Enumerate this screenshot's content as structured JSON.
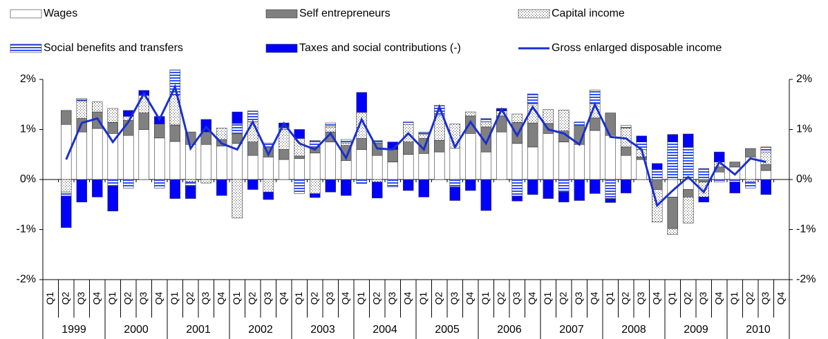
{
  "chart_data": {
    "type": "stacked-bar-line",
    "categories": [
      "Q1",
      "Q2",
      "Q3",
      "Q4",
      "Q1",
      "Q2",
      "Q3",
      "Q4",
      "Q1",
      "Q2",
      "Q3",
      "Q4",
      "Q1",
      "Q2",
      "Q3",
      "Q4",
      "Q1",
      "Q2",
      "Q3",
      "Q4",
      "Q1",
      "Q2",
      "Q3",
      "Q4",
      "Q1",
      "Q2",
      "Q3",
      "Q4",
      "Q1",
      "Q2",
      "Q3",
      "Q4",
      "Q1",
      "Q2",
      "Q3",
      "Q4",
      "Q1",
      "Q2",
      "Q3",
      "Q4",
      "Q1",
      "Q2",
      "Q3",
      "Q4",
      "Q1",
      "Q2",
      "Q3",
      "Q4"
    ],
    "years": [
      "1999",
      "2000",
      "2001",
      "2002",
      "2003",
      "2004",
      "2005",
      "2006",
      "2007",
      "2008",
      "2009",
      "2010"
    ],
    "series": [
      {
        "name": "Wages",
        "color": "#ffffff",
        "pattern": "solid",
        "values": [
          null,
          1.1,
          0.95,
          1.02,
          0.92,
          0.88,
          1.0,
          0.83,
          0.76,
          0.7,
          0.7,
          0.67,
          0.72,
          0.48,
          0.45,
          0.4,
          0.42,
          0.53,
          0.75,
          0.38,
          0.6,
          0.48,
          0.35,
          0.5,
          0.52,
          0.55,
          0.63,
          0.92,
          0.55,
          0.95,
          0.72,
          0.65,
          0.92,
          0.75,
          0.7,
          0.98,
          0.88,
          0.48,
          0.4,
          0,
          -0.35,
          -0.2,
          0,
          0.15,
          0.25,
          0.45,
          0.18,
          null
        ]
      },
      {
        "name": "Self entrepreneurs",
        "color": "#808080",
        "pattern": "solid",
        "values": [
          null,
          0.28,
          0.27,
          0.33,
          0.22,
          0.3,
          0.33,
          0.28,
          0.33,
          0.25,
          0.25,
          0.13,
          0.2,
          0.27,
          0.2,
          0.2,
          0.05,
          0.12,
          0.2,
          0.3,
          0.22,
          0.25,
          0.25,
          0.25,
          0.3,
          0.23,
          0,
          0.35,
          0.5,
          0.32,
          0.42,
          0.48,
          0.2,
          0.22,
          0.38,
          0.25,
          0.45,
          0.17,
          0.05,
          -0.2,
          -0.63,
          -0.15,
          -0.05,
          0.1,
          0.1,
          0.17,
          0.12,
          null
        ]
      },
      {
        "name": "Capital income",
        "color": "#555555",
        "pattern": "dots",
        "values": [
          null,
          -0.25,
          0.35,
          0.2,
          0.28,
          0.08,
          0.35,
          0,
          0.6,
          -0.05,
          -0.07,
          0.23,
          -0.77,
          0.4,
          -0.25,
          0.4,
          0.35,
          -0.28,
          0.1,
          0.05,
          0.52,
          -0.05,
          0,
          0.35,
          0.08,
          0.5,
          0.48,
          0.08,
          0.1,
          0.1,
          0.17,
          0.38,
          0.28,
          0.42,
          0,
          0.28,
          0,
          0.38,
          0.15,
          -0.65,
          -0.12,
          -0.52,
          -0.3,
          0.1,
          0,
          -0.05,
          0.25,
          null
        ]
      },
      {
        "name": "Social benefits and transfers",
        "color": "#3050ff",
        "pattern": "stripes",
        "values": [
          null,
          -0.08,
          0.05,
          0,
          -0.13,
          -0.17,
          0,
          -0.17,
          0.5,
          -0.08,
          0,
          0,
          0.2,
          0.22,
          0.08,
          0.05,
          -0.28,
          0.13,
          0.08,
          0.07,
          -0.08,
          0.05,
          -0.15,
          0.05,
          0.05,
          0.2,
          -0.15,
          0,
          0.07,
          0,
          -0.33,
          0.2,
          0,
          -0.25,
          0.07,
          0.28,
          -0.38,
          0.05,
          0.15,
          0.2,
          0.75,
          0.65,
          0.22,
          -0.05,
          -0.05,
          -0.12,
          0.1,
          null
        ]
      },
      {
        "name": "Taxes and social contributions (-)",
        "color": "#0000ff",
        "pattern": "solid",
        "values": [
          null,
          -0.63,
          -0.45,
          -0.35,
          -0.5,
          0.12,
          0.1,
          0.15,
          -0.38,
          -0.25,
          0.25,
          -0.32,
          0.23,
          -0.2,
          -0.15,
          0.08,
          0.18,
          -0.08,
          -0.25,
          -0.32,
          0.4,
          -0.32,
          0.15,
          -0.22,
          -0.35,
          0,
          -0.27,
          -0.22,
          -0.62,
          0.05,
          -0.1,
          -0.3,
          -0.38,
          -0.2,
          -0.42,
          -0.28,
          -0.08,
          -0.27,
          0.12,
          0.12,
          0.15,
          0.26,
          -0.1,
          0.2,
          -0.22,
          0,
          -0.3,
          null
        ]
      },
      {
        "name": "Gross enlarged disposable income",
        "color": "#1a2fd0",
        "kind": "line",
        "values": [
          null,
          0.4,
          1.13,
          1.22,
          0.75,
          1.15,
          1.72,
          1.2,
          1.85,
          0.62,
          1.05,
          0.72,
          0.6,
          1.15,
          0.5,
          1.12,
          0.72,
          0.6,
          0.92,
          0.43,
          1.2,
          0.62,
          0.6,
          0.92,
          0.6,
          1.45,
          0.65,
          1.15,
          0.72,
          1.4,
          0.88,
          1.45,
          1.0,
          0.92,
          0.7,
          1.5,
          0.85,
          0.82,
          0.6,
          -0.52,
          -0.22,
          0.05,
          -0.25,
          0.35,
          0.1,
          0.42,
          0.35,
          null
        ]
      }
    ],
    "ylim": [
      -2,
      2
    ],
    "yticks": [
      {
        "value": 2,
        "label": "2%"
      },
      {
        "value": 1,
        "label": "1%"
      },
      {
        "value": 0,
        "label": "0%"
      },
      {
        "value": -1,
        "label": "-1%"
      },
      {
        "value": -2,
        "label": "-2%"
      }
    ],
    "y2lim": [
      -2,
      2
    ],
    "y2ticks": [
      {
        "value": 2,
        "label": "2%"
      },
      {
        "value": 1,
        "label": "1%"
      },
      {
        "value": 0,
        "label": "0%"
      },
      {
        "value": -1,
        "label": "-1%"
      },
      {
        "value": -2,
        "label": "-2%"
      }
    ],
    "legend": "top"
  }
}
